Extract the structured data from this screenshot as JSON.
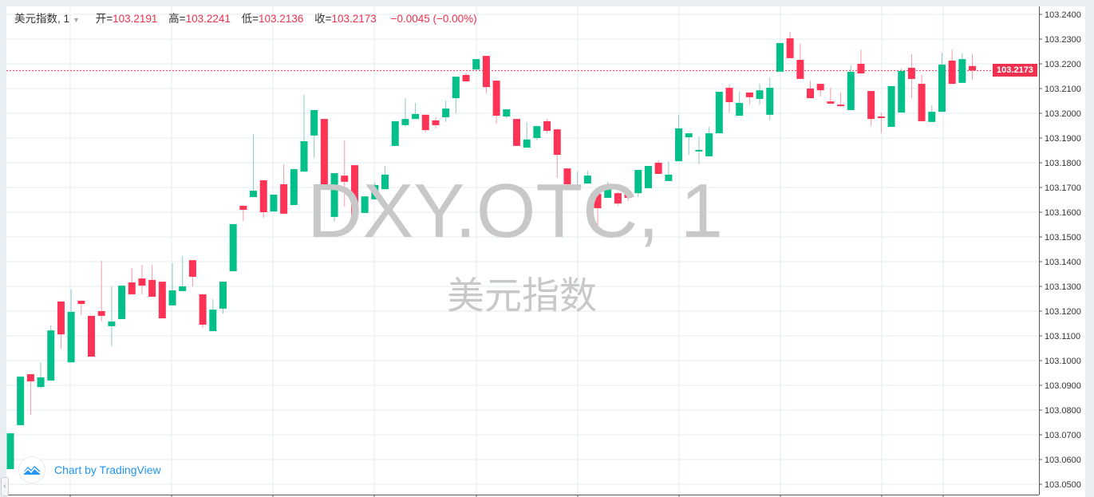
{
  "legend": {
    "symbol": "美元指数, 1",
    "open_label": "开=",
    "open": "103.2191",
    "high_label": "高=",
    "high": "103.2241",
    "low_label": "低=",
    "low": "103.2136",
    "close_label": "收=",
    "close": "103.2173",
    "change": "−0.0045 (−0.00%)"
  },
  "watermark": {
    "symbol": "DXY.OTC, 1",
    "name": "美元指数"
  },
  "branding": {
    "text": "Chart by TradingView"
  },
  "last_price_label": "103.2173",
  "colors": {
    "up": "#03c08a",
    "down": "#ff3355",
    "grid": "#e1ecf2",
    "last_line": "#f0304f",
    "brand": "#2196f3"
  },
  "chart_data": {
    "type": "candlestick",
    "title": "美元指数, 1",
    "ylim": [
      103.05,
      103.24
    ],
    "y_ticks": [
      "103.2400",
      "103.2300",
      "103.2200",
      "103.2100",
      "103.2000",
      "103.1900",
      "103.1800",
      "103.1700",
      "103.1600",
      "103.1500",
      "103.1400",
      "103.1300",
      "103.1200",
      "103.1100",
      "103.1000",
      "103.0900",
      "103.0800",
      "103.0700",
      "103.0600",
      "103.0500"
    ],
    "last_price": 103.2173,
    "grid": true,
    "ohlc": [
      [
        103.0561,
        103.0706,
        103.0561,
        103.0706
      ],
      [
        103.0739,
        103.0935,
        103.0739,
        103.0935
      ],
      [
        103.0945,
        103.0945,
        103.078,
        103.0916
      ],
      [
        103.0893,
        103.0993,
        103.0887,
        103.0932
      ],
      [
        103.0919,
        103.1142,
        103.0919,
        103.1122
      ],
      [
        103.1239,
        103.1239,
        103.1048,
        103.1106
      ],
      [
        103.0993,
        103.1287,
        103.0993,
        103.1197
      ],
      [
        103.1242,
        103.1242,
        103.1184,
        103.1229
      ],
      [
        103.1181,
        103.1181,
        103.1016,
        103.1016
      ],
      [
        103.12,
        103.1403,
        103.1158,
        103.1181
      ],
      [
        103.1139,
        103.13,
        103.1058,
        103.1158
      ],
      [
        103.1168,
        103.1303,
        103.1168,
        103.1303
      ],
      [
        103.1316,
        103.1374,
        103.1268,
        103.1268
      ],
      [
        103.1332,
        103.1387,
        103.1268,
        103.1303
      ],
      [
        103.1326,
        103.1387,
        103.1258,
        103.1258
      ],
      [
        103.1319,
        103.1319,
        103.1171,
        103.1171
      ],
      [
        103.1223,
        103.1394,
        103.1223,
        103.1284
      ],
      [
        103.1281,
        103.1423,
        103.1281,
        103.13
      ],
      [
        103.1406,
        103.1406,
        103.13,
        103.1339
      ],
      [
        103.1268,
        103.1268,
        103.1132,
        103.1145
      ],
      [
        103.1119,
        103.1248,
        103.1119,
        103.1206
      ],
      [
        103.121,
        103.1319,
        103.119,
        103.1319
      ],
      [
        103.1361,
        103.1552,
        103.1361,
        103.1552
      ],
      [
        103.1626,
        103.1626,
        103.1564,
        103.161
      ],
      [
        103.1661,
        103.1916,
        103.1661,
        103.1687
      ],
      [
        103.1729,
        103.1729,
        103.1577,
        103.16
      ],
      [
        103.1603,
        103.1671,
        103.1603,
        103.1671
      ],
      [
        103.1713,
        103.1794,
        103.1594,
        103.1594
      ],
      [
        103.1629,
        103.1777,
        103.1629,
        103.1774
      ],
      [
        103.1764,
        103.2074,
        103.1764,
        103.1887
      ],
      [
        103.191,
        103.2013,
        103.1819,
        103.2013
      ],
      [
        103.1977,
        103.1977,
        103.1706,
        103.1706
      ],
      [
        103.1581,
        103.1758,
        103.1561,
        103.1758
      ],
      [
        103.1748,
        103.189,
        103.1623,
        103.1723
      ],
      [
        103.179,
        103.179,
        103.1581,
        103.1581
      ],
      [
        103.1597,
        103.1664,
        103.1597,
        103.1664
      ],
      [
        103.1652,
        103.172,
        103.1652,
        103.171
      ],
      [
        103.1693,
        103.1787,
        103.1693,
        103.1752
      ],
      [
        103.1868,
        103.1968,
        103.1868,
        103.1968
      ],
      [
        103.1952,
        103.2061,
        103.1945,
        103.1977
      ],
      [
        103.1977,
        103.2042,
        103.1977,
        103.1997
      ],
      [
        103.1994,
        103.1994,
        103.1923,
        103.1932
      ],
      [
        103.1971,
        103.1984,
        103.1939,
        103.1952
      ],
      [
        103.1984,
        103.2052,
        103.1965,
        103.2019
      ],
      [
        103.2061,
        103.2148,
        103.2,
        103.2148
      ],
      [
        103.2155,
        103.2164,
        103.2129,
        103.2129
      ],
      [
        103.2177,
        103.2219,
        103.2177,
        103.2219
      ],
      [
        103.2232,
        103.2232,
        103.2081,
        103.2106
      ],
      [
        103.2132,
        103.2132,
        103.1958,
        103.199
      ],
      [
        103.1987,
        103.2016,
        103.198,
        103.2016
      ],
      [
        103.1977,
        103.1977,
        103.1868,
        103.1868
      ],
      [
        103.1861,
        103.1965,
        103.1861,
        103.1894
      ],
      [
        103.19,
        103.1948,
        103.189,
        103.1948
      ],
      [
        103.1968,
        103.1977,
        103.1919,
        103.1929
      ],
      [
        103.1935,
        103.1935,
        103.1739,
        103.1832
      ],
      [
        103.1777,
        103.1777,
        103.1694,
        103.1713
      ],
      [
        103.1703,
        103.1764,
        103.1703,
        103.171
      ],
      [
        103.1716,
        103.1768,
        103.1716,
        103.1748
      ],
      [
        103.1674,
        103.1674,
        103.1529,
        103.1616
      ],
      [
        103.1658,
        103.1723,
        103.1658,
        103.1706
      ],
      [
        103.1677,
        103.1681,
        103.1626,
        103.1635
      ],
      [
        103.1674,
        103.1674,
        103.1645,
        103.1658
      ],
      [
        103.1677,
        103.1771,
        103.1661,
        103.1771
      ],
      [
        103.1697,
        103.1787,
        103.1697,
        103.1787
      ],
      [
        103.18,
        103.181,
        103.1755,
        103.1755
      ],
      [
        103.1726,
        103.1806,
        103.1726,
        103.1752
      ],
      [
        103.1806,
        103.1994,
        103.1806,
        103.1939
      ],
      [
        103.1903,
        103.1919,
        103.1832,
        103.1919
      ],
      [
        103.1852,
        103.1906,
        103.1794,
        103.1852
      ],
      [
        103.1826,
        103.1945,
        103.1826,
        103.1919
      ],
      [
        103.1919,
        103.2087,
        103.1919,
        103.2087
      ],
      [
        103.2103,
        103.2116,
        103.2003,
        103.2045
      ],
      [
        103.199,
        103.2087,
        103.199,
        103.2042
      ],
      [
        103.2084,
        103.2084,
        103.2035,
        103.2065
      ],
      [
        103.2058,
        103.2119,
        103.2035,
        103.2093
      ],
      [
        103.1994,
        103.2145,
        103.1971,
        103.2103
      ],
      [
        103.2168,
        103.2284,
        103.2168,
        103.2284
      ],
      [
        103.2303,
        103.2329,
        103.2223,
        103.2223
      ],
      [
        103.2216,
        103.2281,
        103.2139,
        103.2139
      ],
      [
        103.21,
        103.2132,
        103.2061,
        103.2061
      ],
      [
        103.2119,
        103.2119,
        103.2068,
        103.2093
      ],
      [
        103.2048,
        103.2103,
        103.2039,
        103.2039
      ],
      [
        103.2035,
        103.2084,
        103.2029,
        103.2029
      ],
      [
        103.2013,
        103.2194,
        103.2013,
        103.2168
      ],
      [
        103.22,
        103.2258,
        103.2161,
        103.2161
      ],
      [
        103.209,
        103.209,
        103.1948,
        103.1977
      ],
      [
        103.1987,
        103.2003,
        103.1919,
        103.1981
      ],
      [
        103.1945,
        103.211,
        103.1945,
        103.211
      ],
      [
        103.2003,
        103.2181,
        103.2003,
        103.2171
      ],
      [
        103.2184,
        103.2239,
        103.2061,
        103.2139
      ],
      [
        103.2119,
        103.2155,
        103.1968,
        103.1968
      ],
      [
        103.1965,
        103.2032,
        103.1965,
        103.2006
      ],
      [
        103.2006,
        103.2245,
        103.2006,
        103.2197
      ],
      [
        103.2213,
        103.2258,
        103.2119,
        103.2119
      ],
      [
        103.2123,
        103.2242,
        103.2123,
        103.2219
      ],
      [
        103.2191,
        103.2241,
        103.2136,
        103.2173
      ]
    ]
  }
}
